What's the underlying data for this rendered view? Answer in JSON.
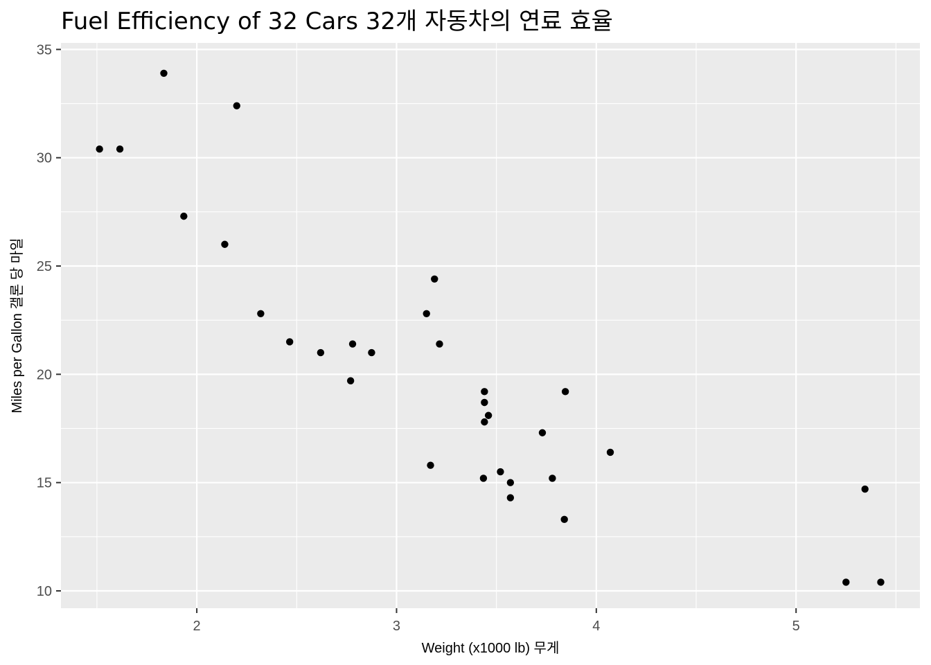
{
  "chart_data": {
    "type": "scatter",
    "title": "Fuel Efficiency of 32 Cars 32개 자동차의 연료 효율",
    "xlabel": "Weight (x1000 lb) 무게",
    "ylabel": "Miles per Gallon 갤론 당 마일",
    "xlim": [
      1.32,
      5.62
    ],
    "ylim": [
      9.2,
      35.3
    ],
    "x_ticks": [
      2,
      3,
      4,
      5
    ],
    "y_ticks": [
      10,
      15,
      20,
      25,
      30,
      35
    ],
    "grid": true,
    "legend": "none",
    "colors": {
      "panel": "#ebebeb",
      "grid": "#ffffff",
      "point": "#000000",
      "tick": "#333333"
    },
    "points": [
      {
        "x": 2.62,
        "y": 21.0
      },
      {
        "x": 2.875,
        "y": 21.0
      },
      {
        "x": 2.32,
        "y": 22.8
      },
      {
        "x": 3.215,
        "y": 21.4
      },
      {
        "x": 3.44,
        "y": 18.7
      },
      {
        "x": 3.46,
        "y": 18.1
      },
      {
        "x": 3.57,
        "y": 14.3
      },
      {
        "x": 3.19,
        "y": 24.4
      },
      {
        "x": 3.15,
        "y": 22.8
      },
      {
        "x": 3.44,
        "y": 19.2
      },
      {
        "x": 3.44,
        "y": 17.8
      },
      {
        "x": 4.07,
        "y": 16.4
      },
      {
        "x": 3.73,
        "y": 17.3
      },
      {
        "x": 3.78,
        "y": 15.2
      },
      {
        "x": 5.25,
        "y": 10.4
      },
      {
        "x": 5.424,
        "y": 10.4
      },
      {
        "x": 5.345,
        "y": 14.7
      },
      {
        "x": 2.2,
        "y": 32.4
      },
      {
        "x": 1.615,
        "y": 30.4
      },
      {
        "x": 1.835,
        "y": 33.9
      },
      {
        "x": 2.465,
        "y": 21.5
      },
      {
        "x": 3.52,
        "y": 15.5
      },
      {
        "x": 3.435,
        "y": 15.2
      },
      {
        "x": 3.84,
        "y": 13.3
      },
      {
        "x": 3.845,
        "y": 19.2
      },
      {
        "x": 1.935,
        "y": 27.3
      },
      {
        "x": 2.14,
        "y": 26.0
      },
      {
        "x": 1.513,
        "y": 30.4
      },
      {
        "x": 3.17,
        "y": 15.8
      },
      {
        "x": 2.77,
        "y": 19.7
      },
      {
        "x": 3.57,
        "y": 15.0
      },
      {
        "x": 2.78,
        "y": 21.4
      }
    ]
  }
}
